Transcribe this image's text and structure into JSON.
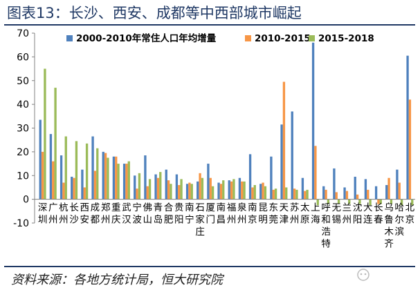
{
  "figure_title": "图表13：长沙、西安、成都等中西部城市崛起",
  "source_note": "资料来源：各地方统计局，恒大研究院",
  "watermark_icon": "wechat-logo-icon",
  "colors": {
    "s1": "#4F81BD",
    "s2": "#F79646",
    "s3": "#9BBB59",
    "title": "#1F3864",
    "rule": "#1F3864"
  },
  "chart_data": {
    "type": "bar",
    "ylim": [
      -10,
      70
    ],
    "yticks": [
      -10,
      0,
      10,
      20,
      30,
      40,
      50,
      60,
      70
    ],
    "grid": false,
    "legend_position": "top",
    "categories": [
      "深圳",
      "广州",
      "杭州",
      "长沙",
      "西安",
      "成都",
      "郑州",
      "重庆",
      "武汉",
      "宁波",
      "佛山",
      "青岛",
      "合肥",
      "贵阳",
      "南宁",
      "石家庄",
      "厦门",
      "南昌",
      "福州",
      "泉州",
      "南京",
      "昆明",
      "东莞",
      "天津",
      "苏州",
      "太原",
      "上海",
      "呼和浩特",
      "无锡",
      "兰州",
      "沈阳",
      "大连",
      "长春",
      "乌鲁木齐",
      "哈尔滨",
      "北京"
    ],
    "series": [
      {
        "name": "2000-2010年常住人口年均增量",
        "values": [
          33.5,
          27.5,
          18.5,
          9.5,
          12.5,
          26.5,
          20,
          18,
          15,
          10,
          18.5,
          10.5,
          12.5,
          10.5,
          6.5,
          7.5,
          15,
          7,
          8,
          9,
          19,
          6.5,
          18,
          31.5,
          37,
          9,
          66,
          5.5,
          13,
          5,
          9.5,
          8.5,
          5.5,
          6,
          12.5,
          60.5
        ]
      },
      {
        "name": "2010-2015",
        "values": [
          20,
          16,
          7,
          9,
          5,
          12,
          19.5,
          18,
          15,
          4.5,
          5.5,
          9,
          8,
          6,
          7,
          11,
          9,
          6.5,
          7.5,
          7.5,
          5,
          7,
          4,
          49.5,
          4.5,
          3.5,
          22.5,
          4,
          3,
          3.5,
          2,
          4,
          -2,
          9,
          7,
          42
        ]
      },
      {
        "name": "2015-2018",
        "values": [
          55,
          47,
          26.5,
          24.5,
          23.5,
          21.5,
          17.5,
          15,
          16,
          11,
          8.5,
          11.5,
          6.5,
          8.5,
          6.5,
          9,
          5.5,
          8,
          8.5,
          7.5,
          6,
          5.5,
          4.5,
          5,
          4,
          4,
          -2.5,
          -2,
          -2,
          -2,
          -2,
          -2.5,
          -2,
          -2,
          -2.5,
          -2.5
        ]
      }
    ]
  }
}
